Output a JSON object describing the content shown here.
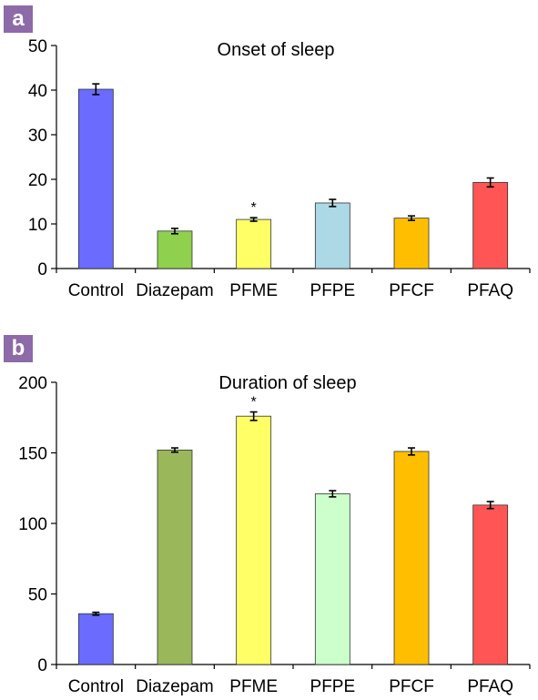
{
  "chart_data": [
    {
      "panel_label": "a",
      "type": "bar",
      "title": "Onset of sleep",
      "categories": [
        "Control",
        "Diazepam",
        "PFME",
        "PFPE",
        "PFCF",
        "PFAQ"
      ],
      "values": [
        40.2,
        8.4,
        11.0,
        14.7,
        11.3,
        19.3
      ],
      "errors": [
        1.2,
        0.6,
        0.4,
        0.8,
        0.5,
        1.0
      ],
      "significance": [
        "",
        "",
        "*",
        "",
        "",
        ""
      ],
      "colors": [
        "#6b6bff",
        "#8fd04e",
        "#ffff66",
        "#add8e6",
        "#ffbf00",
        "#ff5555"
      ],
      "yticks": [
        0,
        10,
        20,
        30,
        40,
        50
      ],
      "ylim": [
        0,
        50
      ],
      "xlabel": "",
      "ylabel": "",
      "grid": false
    },
    {
      "panel_label": "b",
      "type": "bar",
      "title": "Duration of sleep",
      "categories": [
        "Control",
        "Diazepam",
        "PFME",
        "PFPE",
        "PFCF",
        "PFAQ"
      ],
      "values": [
        36,
        152,
        176,
        121,
        151,
        113
      ],
      "errors": [
        1.0,
        1.5,
        3.0,
        2.2,
        2.5,
        2.5
      ],
      "significance": [
        "",
        "",
        "*",
        "",
        "",
        ""
      ],
      "colors": [
        "#6b6bff",
        "#9ab859",
        "#ffff66",
        "#ccffcc",
        "#ffbf00",
        "#ff5555"
      ],
      "yticks": [
        0,
        50,
        100,
        150,
        200
      ],
      "ylim": [
        0,
        200
      ],
      "xlabel": "",
      "ylabel": "",
      "grid": false
    }
  ]
}
